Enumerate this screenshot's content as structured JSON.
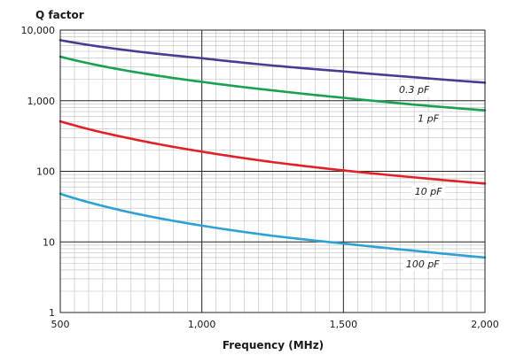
{
  "chart_data": {
    "type": "line",
    "ylabel": "Q factor",
    "xlabel": "Frequency (MHz)",
    "xlim": [
      500,
      2000
    ],
    "ylim": [
      1,
      10000
    ],
    "yscale": "log",
    "grid": true,
    "legend": "inline labels",
    "x_ticks": [
      500,
      1000,
      1500,
      2000
    ],
    "x_tick_labels": [
      "500",
      "1,000",
      "1,500",
      "2,000"
    ],
    "y_ticks": [
      1,
      10,
      100,
      1000,
      10000
    ],
    "y_tick_labels": [
      "1",
      "10",
      "100",
      "1,000",
      "10,000"
    ],
    "series": [
      {
        "name": "0.3 pF",
        "color": "#4b3a92",
        "x": [
          500,
          750,
          1000,
          1250,
          1500,
          1750,
          2000
        ],
        "y": [
          7200,
          5100,
          4000,
          3150,
          2600,
          2150,
          1800
        ],
        "label_at": 1750
      },
      {
        "name": "1 pF",
        "color": "#1aa052",
        "x": [
          500,
          750,
          1000,
          1250,
          1500,
          1750,
          2000
        ],
        "y": [
          4200,
          2600,
          1850,
          1400,
          1100,
          880,
          730
        ],
        "label_at": 1800
      },
      {
        "name": "10 pF",
        "color": "#e0212a",
        "x": [
          500,
          750,
          1000,
          1250,
          1500,
          1750,
          2000
        ],
        "y": [
          510,
          290,
          190,
          135,
          103,
          82,
          67
        ],
        "label_at": 1800
      },
      {
        "name": "100 pF",
        "color": "#2ea0d8",
        "x": [
          500,
          750,
          1000,
          1250,
          1500,
          1750,
          2000
        ],
        "y": [
          48,
          26,
          17,
          12.2,
          9.5,
          7.5,
          6
        ],
        "label_at": 1780
      }
    ]
  }
}
